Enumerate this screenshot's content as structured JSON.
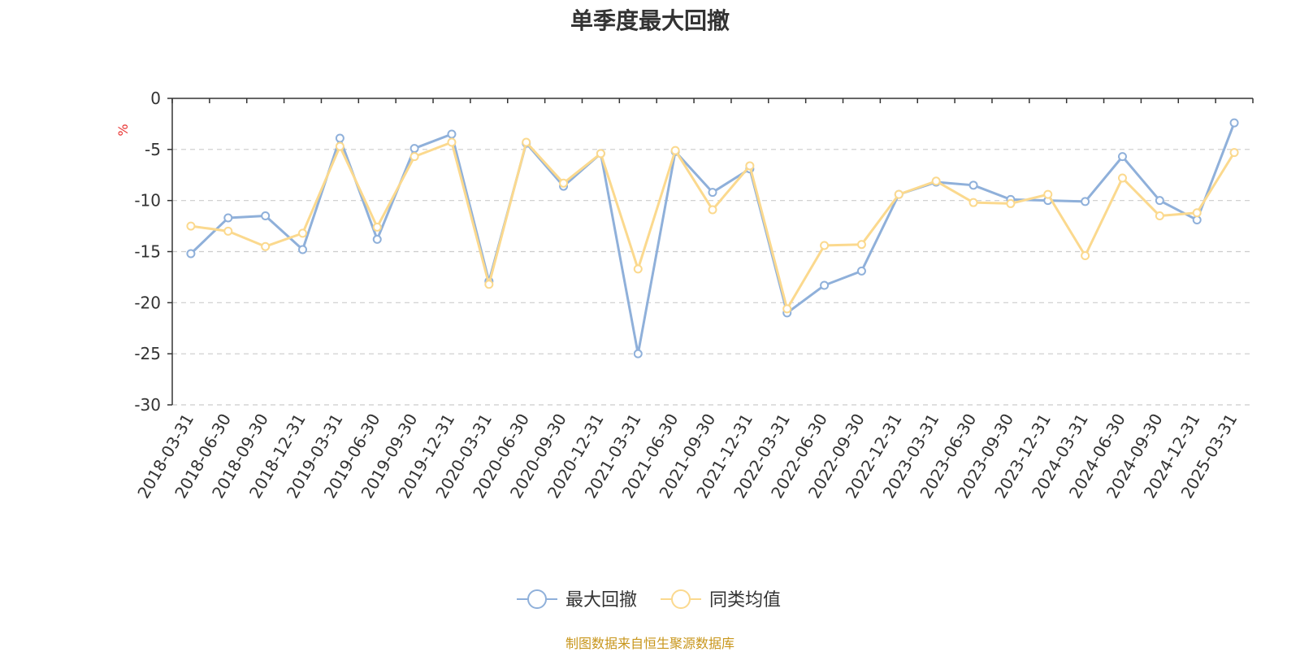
{
  "chart_data": {
    "type": "line",
    "title": "单季度最大回撤",
    "ylabel": "%",
    "ylim": [
      -30,
      0
    ],
    "yticks": [
      0,
      -5,
      -10,
      -15,
      -20,
      -25,
      -30
    ],
    "grid": true,
    "legend_position": "bottom",
    "x": [
      "2018-03-31",
      "2018-06-30",
      "2018-09-30",
      "2018-12-31",
      "2019-03-31",
      "2019-06-30",
      "2019-09-30",
      "2019-12-31",
      "2020-03-31",
      "2020-06-30",
      "2020-09-30",
      "2020-12-31",
      "2021-03-31",
      "2021-06-30",
      "2021-09-30",
      "2021-12-31",
      "2022-03-31",
      "2022-06-30",
      "2022-09-30",
      "2022-12-31",
      "2023-03-31",
      "2023-06-30",
      "2023-09-30",
      "2023-12-31",
      "2024-03-31",
      "2024-06-30",
      "2024-09-30",
      "2024-12-31",
      "2025-03-31"
    ],
    "series": [
      {
        "name": "最大回撤",
        "color": "#8fb0da",
        "values": [
          -15.2,
          -11.7,
          -11.5,
          -14.8,
          -3.9,
          -13.8,
          -4.9,
          -3.5,
          -17.9,
          -4.4,
          -8.6,
          -5.4,
          -25.0,
          -5.2,
          -9.2,
          -6.9,
          -21.0,
          -18.3,
          -16.9,
          -9.4,
          -8.2,
          -8.5,
          -9.9,
          -10.0,
          -10.1,
          -5.7,
          -10.0,
          -11.9,
          -2.4
        ]
      },
      {
        "name": "同类均值",
        "color": "#fbd98e",
        "values": [
          -12.5,
          -13.0,
          -14.5,
          -13.2,
          -4.7,
          -12.6,
          -5.7,
          -4.3,
          -18.2,
          -4.3,
          -8.3,
          -5.4,
          -16.7,
          -5.1,
          -10.9,
          -6.6,
          -20.6,
          -14.4,
          -14.3,
          -9.4,
          -8.1,
          -10.2,
          -10.3,
          -9.4,
          -15.4,
          -7.8,
          -11.5,
          -11.2,
          -5.3
        ]
      }
    ]
  },
  "source": "制图数据来自恒生聚源数据库"
}
